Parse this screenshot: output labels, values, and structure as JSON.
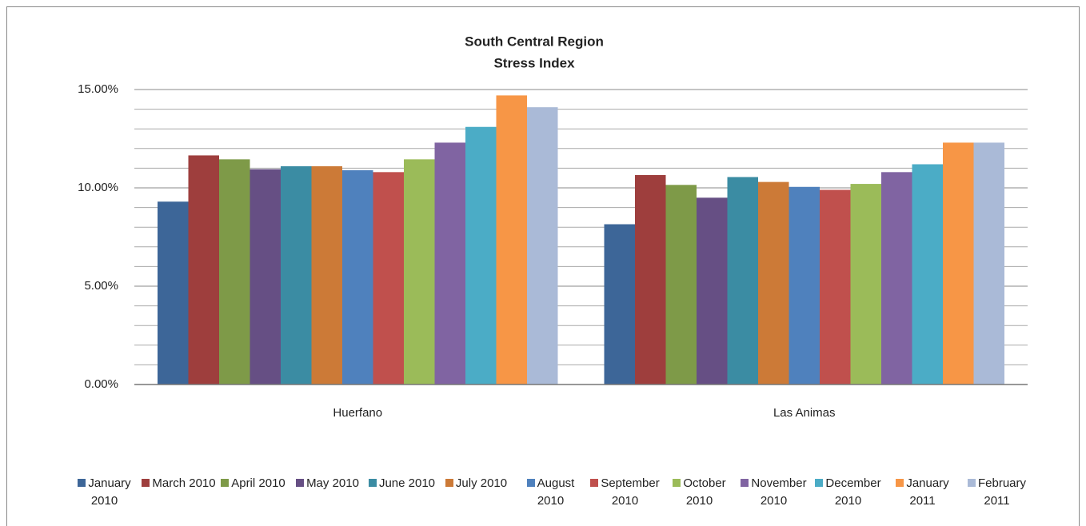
{
  "chart_data": {
    "type": "bar",
    "title": [
      "South Central Region",
      "Stress Index"
    ],
    "categories": [
      "Huerfano",
      "Las Animas"
    ],
    "series": [
      {
        "name": "January 2010",
        "color": "#3d6698",
        "values": [
          9.3,
          8.15
        ]
      },
      {
        "name": "March 2010",
        "color": "#9e3e3d",
        "values": [
          11.65,
          10.65
        ]
      },
      {
        "name": "April 2010",
        "color": "#7e9a48",
        "values": [
          11.45,
          10.15
        ]
      },
      {
        "name": "May 2010",
        "color": "#664f84",
        "values": [
          10.95,
          9.5
        ]
      },
      {
        "name": "June 2010",
        "color": "#3b8ca3",
        "values": [
          11.1,
          10.55
        ]
      },
      {
        "name": "July 2010",
        "color": "#cc7a37",
        "values": [
          11.1,
          10.3
        ]
      },
      {
        "name": "August 2010",
        "color": "#4f81bd",
        "values": [
          10.9,
          10.05
        ]
      },
      {
        "name": "September 2010",
        "color": "#c0504d",
        "values": [
          10.8,
          9.9
        ]
      },
      {
        "name": "October 2010",
        "color": "#9bbb59",
        "values": [
          11.45,
          10.2
        ]
      },
      {
        "name": "November 2010",
        "color": "#8064a2",
        "values": [
          12.3,
          10.8
        ]
      },
      {
        "name": "December 2010",
        "color": "#4bacc6",
        "values": [
          13.1,
          11.2
        ]
      },
      {
        "name": "January 2011",
        "color": "#f79646",
        "values": [
          14.7,
          12.3
        ]
      },
      {
        "name": "February 2011",
        "color": "#aabad7",
        "values": [
          14.1,
          12.3
        ]
      }
    ],
    "ylim": [
      0,
      15
    ],
    "yticks": [
      {
        "value": 0,
        "label": "0.00%"
      },
      {
        "value": 5,
        "label": "5.00%"
      },
      {
        "value": 10,
        "label": "10.00%"
      },
      {
        "value": 15,
        "label": "15.00%"
      }
    ],
    "grid": true,
    "legend": "bottom"
  }
}
